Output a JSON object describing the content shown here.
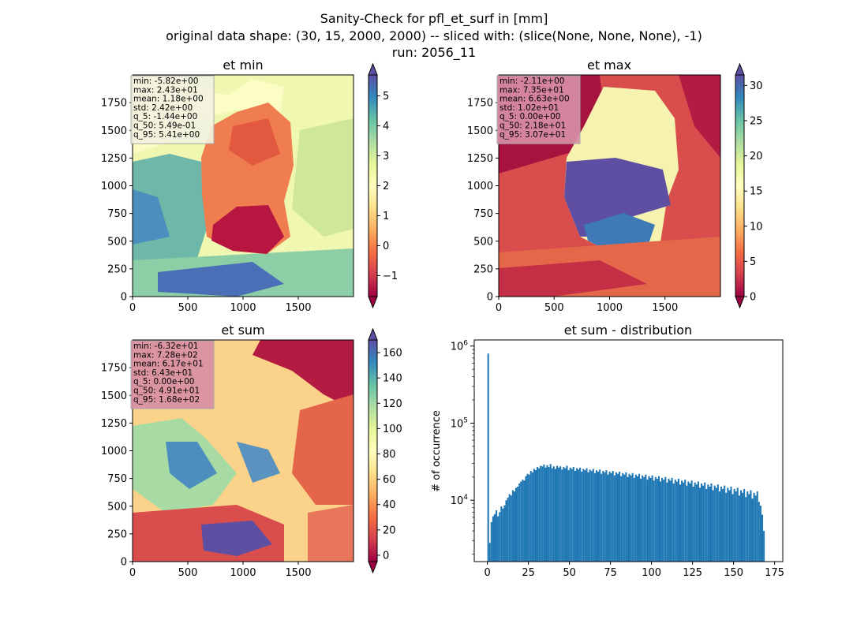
{
  "suptitle": {
    "line1": "Sanity-Check for pfl_et_surf in [mm]",
    "line2": "original data shape: (30, 15, 2000, 2000) -- sliced with: (slice(None, None, None), -1)",
    "line3": "run: 2056_11"
  },
  "chart_data": [
    {
      "type": "heatmap",
      "title": "et min",
      "xticks": [
        "0",
        "500",
        "1000",
        "1500"
      ],
      "yticks": [
        "0",
        "250",
        "500",
        "750",
        "1000",
        "1250",
        "1500",
        "1750"
      ],
      "xlim": [
        0,
        2000
      ],
      "ylim": [
        0,
        2000
      ],
      "colormap": "Spectral",
      "colorbar": {
        "ticks": [
          "−1",
          "0",
          "1",
          "2",
          "3",
          "4",
          "5"
        ],
        "range": [
          -1.7,
          5.7
        ],
        "extend": "both"
      },
      "stats": [
        "min: -5.82e+00",
        "max: 2.43e+01",
        "mean: 1.18e+00",
        "std: 2.42e+00",
        "q_5: -1.44e+00",
        "q_50: 5.49e-01",
        "q_95: 5.41e+00"
      ],
      "stats_bg": "#f2f2e0"
    },
    {
      "type": "heatmap",
      "title": "et max",
      "xticks": [
        "0",
        "500",
        "1000",
        "1500"
      ],
      "yticks": [
        "0",
        "250",
        "500",
        "750",
        "1000",
        "1250",
        "1500",
        "1750"
      ],
      "xlim": [
        0,
        2000
      ],
      "ylim": [
        0,
        2000
      ],
      "colormap": "Spectral",
      "colorbar": {
        "ticks": [
          "0",
          "5",
          "10",
          "15",
          "20",
          "25",
          "30"
        ],
        "range": [
          0,
          31.5
        ],
        "extend": "both"
      },
      "stats": [
        "min: -2.11e+00",
        "max: 7.35e+01",
        "mean: 6.63e+00",
        "std: 1.02e+01",
        "q_5: 0.00e+00",
        "q_50: 2.18e+01",
        "q_95: 3.07e+01"
      ],
      "stats_bg": "#d88ea4"
    },
    {
      "type": "heatmap",
      "title": "et sum",
      "xticks": [
        "0",
        "500",
        "1000",
        "1500"
      ],
      "yticks": [
        "0",
        "250",
        "500",
        "750",
        "1000",
        "1250",
        "1500",
        "1750"
      ],
      "xlim": [
        0,
        2000
      ],
      "ylim": [
        0,
        2000
      ],
      "colormap": "Spectral",
      "colorbar": {
        "ticks": [
          "0",
          "20",
          "40",
          "60",
          "80",
          "100",
          "120",
          "140",
          "160"
        ],
        "range": [
          -5,
          170
        ],
        "extend": "both"
      },
      "stats": [
        "min: -6.32e+01",
        "max: 7.28e+02",
        "mean: 6.17e+01",
        "std: 6.43e+01",
        "q_5: 0.00e+00",
        "q_50: 4.91e+01",
        "q_95: 1.68e+02"
      ],
      "stats_bg": "#d88ea4"
    },
    {
      "type": "bar",
      "title": "et sum - distribution",
      "ylabel": "# of occurrence",
      "yscale": "log",
      "ylim": [
        1600,
        1200000
      ],
      "yticks": [
        {
          "base": "10",
          "exp": "4",
          "value": 10000
        },
        {
          "base": "10",
          "exp": "5",
          "value": 100000
        },
        {
          "base": "10",
          "exp": "6",
          "value": 1000000
        }
      ],
      "xlim": [
        -8,
        180
      ],
      "xticks": [
        "0",
        "25",
        "50",
        "75",
        "100",
        "125",
        "150",
        "175"
      ],
      "color": "#1f77b4",
      "bin_width": 1,
      "x_start": 0,
      "values": [
        800000,
        2800,
        5200,
        6200,
        6600,
        7400,
        6200,
        7000,
        8300,
        7800,
        8600,
        10000,
        10800,
        12000,
        11500,
        13500,
        13000,
        14500,
        15000,
        16500,
        17500,
        18500,
        18000,
        20500,
        22000,
        21500,
        24000,
        23000,
        25500,
        24500,
        27000,
        26000,
        28000,
        27500,
        29000,
        26500,
        28500,
        27000,
        29500,
        26000,
        27500,
        25500,
        28000,
        26500,
        27500,
        25000,
        27000,
        26000,
        28000,
        24500,
        26500,
        25500,
        27000,
        24000,
        26000,
        25000,
        26500,
        23500,
        25500,
        24500,
        26000,
        23000,
        25000,
        24000,
        25500,
        22500,
        24500,
        23500,
        25000,
        22000,
        24000,
        23000,
        24500,
        21500,
        23500,
        22500,
        24000,
        21000,
        23000,
        22000,
        23500,
        20500,
        22500,
        21500,
        23000,
        20000,
        22000,
        21000,
        22500,
        19500,
        21500,
        20500,
        22000,
        19000,
        21000,
        20000,
        21500,
        18500,
        20500,
        19500,
        21000,
        18000,
        20000,
        19000,
        20500,
        17500,
        19500,
        18500,
        20000,
        17000,
        19000,
        18000,
        19500,
        16500,
        18500,
        17500,
        19000,
        16000,
        18000,
        17000,
        18500,
        15500,
        17500,
        16500,
        18000,
        15000,
        17000,
        16000,
        17500,
        14500,
        16500,
        15500,
        17000,
        14000,
        16000,
        15000,
        16500,
        13500,
        15500,
        14500,
        16000,
        13000,
        15000,
        14000,
        15500,
        12500,
        14500,
        13500,
        15000,
        12000,
        14000,
        13000,
        14500,
        11500,
        13500,
        12500,
        14000,
        11000,
        13000,
        12000,
        13500,
        10500,
        12500,
        11500,
        13000,
        9500,
        8500,
        6500,
        4000
      ]
    }
  ]
}
